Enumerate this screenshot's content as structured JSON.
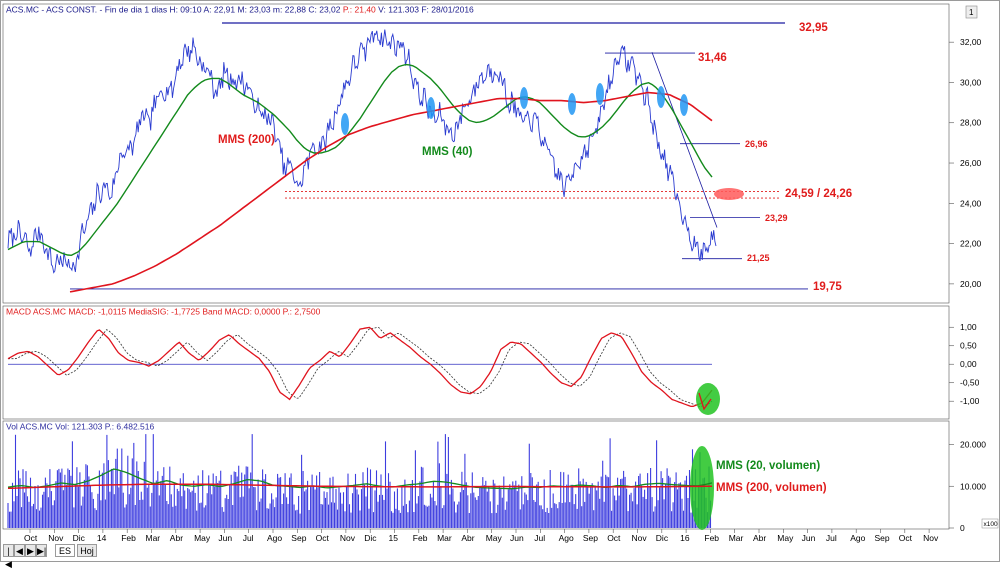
{
  "header": {
    "price_info": "ACS.MC - ACS CONST. - Fin de dia 1 dias H: 09:10 A: 22,91 M: 23,03 m: 22,88 C: 23,02 ",
    "price_change": "P.: 21,40",
    "price_info2": " V: 121.303 F: 28/01/2016"
  },
  "macd_header": {
    "text": "MACD ACS.MC MACD: -1,0115 MediaSIG: -1,7725 Band MACD: 0,0000 P.: 2,7500"
  },
  "vol_header": {
    "text": "Vol ACS.MC Vol: 121.303 P.: 6.482.516"
  },
  "scrollbar_badge": "1",
  "vol_unit_label": "x100",
  "nav_buttons": {
    "first": "|◀",
    "prev": "◀",
    "play": "▶",
    "next": "▶|",
    "tab_es": "ES",
    "tab_hoj": "Hoj"
  },
  "annotations": {
    "top_level": "32,95",
    "second_high": "31,46",
    "resistance_2696": "26,96",
    "support_zone": "24,59 / 24,26",
    "level_2329": "23,29",
    "level_2125": "21,25",
    "bottom_level": "19,75",
    "mms200": "MMS (200)",
    "mms40": "MMS (40)",
    "vol_mms20": "MMS (20, volumen)",
    "vol_mms200": "MMS (200, volumen)"
  },
  "colors": {
    "price_line": "#2a3bd0",
    "mms200": "#e0141e",
    "mms40": "#138a1c",
    "level_line": "#1a1aa0",
    "annotation_red": "#e01c1c",
    "annotation_green": "#138a1c",
    "macd_line": "#e0141e",
    "signal_line": "#333333",
    "volume_bar": "#3d3ddf",
    "marker_blue": "#2196f3",
    "marker_green": "#22c322",
    "marker_red": "#ff5a5a"
  },
  "chart_data": [
    {
      "type": "line",
      "name": "price",
      "x_tick_labels": [
        "Oct",
        "Nov",
        "Dic",
        "14",
        "Feb",
        "Mar",
        "Abr",
        "May",
        "Jun",
        "Jul",
        "Ago",
        "Sep",
        "Oct",
        "Nov",
        "Dic",
        "15",
        "Feb",
        "Mar",
        "Abr",
        "May",
        "Jun",
        "Jul",
        "Ago",
        "Sep",
        "Oct",
        "Nov",
        "Dic",
        "16",
        "Feb",
        "Mar",
        "Abr",
        "May",
        "Jun",
        "Jul",
        "Ago",
        "Sep",
        "Oct",
        "Nov"
      ],
      "y_tick_labels": [
        "32,00",
        "30,00",
        "28,00",
        "26,00",
        "24,00",
        "22,00",
        "20,00"
      ],
      "ylim": [
        19.2,
        33.2
      ],
      "series": [
        {
          "values": [
            22.0,
            22.6,
            22.3,
            21.6,
            22.7,
            21.9,
            20.9,
            21.2,
            21.0,
            20.9,
            22.5,
            23.4,
            24.4,
            24.8,
            24.5,
            26.4,
            26.5,
            27.1,
            28.4,
            28.0,
            29.2,
            29.7,
            29.6,
            31.0,
            31.6,
            31.7,
            30.8,
            30.5,
            29.4,
            30.5,
            30.1,
            30.1,
            29.9,
            29.0,
            28.4,
            28.3,
            27.4,
            25.8,
            25.8,
            24.7,
            25.9,
            26.9,
            26.7,
            27.6,
            28.5,
            29.6,
            30.5,
            31.3,
            31.6,
            32.5,
            32.3,
            32.0,
            31.9,
            31.8,
            30.8,
            29.5,
            29.1,
            28.2,
            28.4,
            27.6,
            27.5,
            28.6,
            29.2,
            30.0,
            30.4,
            30.6,
            30.5,
            29.1,
            28.8,
            28.0,
            28.2,
            28.0,
            26.8,
            26.2,
            25.2,
            24.8,
            25.9,
            26.3,
            27.0,
            27.6,
            29.1,
            30.3,
            31.5,
            31.1,
            30.8,
            29.8,
            28.9,
            27.2,
            26.3,
            25.2,
            24.0,
            23.0,
            22.0,
            21.4,
            22.0,
            22.4
          ]
        },
        {
          "name": "MMS (40)",
          "values": [
            21.7,
            21.9,
            22.1,
            22.1,
            22.1,
            21.9,
            21.7,
            21.5,
            21.4,
            21.6,
            22.0,
            22.5,
            23.0,
            23.5,
            24.0,
            24.6,
            25.2,
            25.8,
            26.4,
            27.0,
            27.6,
            28.2,
            28.8,
            29.4,
            29.8,
            30.1,
            30.2,
            30.2,
            30.0,
            29.7,
            29.4,
            29.2,
            29.0,
            28.7,
            28.4,
            28.0,
            27.6,
            27.1,
            26.7,
            26.5,
            26.5,
            26.6,
            26.8,
            27.2,
            27.7,
            28.2,
            28.8,
            29.4,
            30.0,
            30.5,
            30.8,
            30.9,
            30.8,
            30.5,
            30.2,
            29.8,
            29.3,
            28.8,
            28.4,
            28.1,
            28.0,
            28.1,
            28.3,
            28.6,
            28.9,
            29.2,
            29.3,
            29.2,
            29.0,
            28.6,
            28.2,
            27.8,
            27.5,
            27.3,
            27.3,
            27.5,
            27.8,
            28.2,
            28.7,
            29.2,
            29.6,
            29.9,
            30.0,
            29.7,
            29.2,
            28.6,
            27.9,
            27.2,
            26.5,
            25.8,
            25.3
          ]
        },
        {
          "name": "MMS (200)",
          "values": [
            19.6,
            19.8,
            20.0,
            20.4,
            20.9,
            21.5,
            22.2,
            22.9,
            23.7,
            24.5,
            25.3,
            26.1,
            26.8,
            27.4,
            27.8,
            28.1,
            28.4,
            28.6,
            28.8,
            29.0,
            29.2,
            29.2,
            29.1,
            29.1,
            29.0,
            29.1,
            29.3,
            29.5,
            29.4,
            28.9,
            28.1
          ]
        }
      ],
      "levels": [
        32.95,
        31.46,
        26.96,
        24.59,
        24.26,
        23.29,
        21.25,
        19.75
      ]
    },
    {
      "type": "line",
      "name": "MACD",
      "y_tick_labels": [
        "1,00",
        "0,50",
        "0,00",
        "-0,50",
        "-1,00"
      ],
      "ylim": [
        -1.4,
        1.25
      ],
      "zero_line": 0.0,
      "series": [
        {
          "values": [
            0.15,
            0.3,
            0.35,
            0.2,
            -0.05,
            -0.3,
            -0.15,
            0.2,
            0.6,
            0.95,
            0.7,
            0.3,
            0.1,
            0.05,
            -0.05,
            0.1,
            0.35,
            0.6,
            0.3,
            0.1,
            0.35,
            0.65,
            0.8,
            0.55,
            0.35,
            0.15,
            -0.2,
            -0.75,
            -0.95,
            -0.55,
            -0.1,
            0.1,
            0.35,
            0.2,
            0.55,
            0.95,
            1.0,
            0.7,
            0.85,
            0.65,
            0.45,
            0.2,
            0.0,
            -0.25,
            -0.55,
            -0.75,
            -0.8,
            -0.6,
            -0.2,
            0.4,
            0.6,
            0.55,
            0.3,
            0.05,
            -0.25,
            -0.5,
            -0.6,
            -0.35,
            0.2,
            0.7,
            0.85,
            0.75,
            0.3,
            -0.2,
            -0.5,
            -0.7,
            -0.95,
            -1.05,
            -1.15,
            -1.05,
            -0.7
          ]
        }
      ]
    },
    {
      "type": "bar",
      "name": "Volume",
      "y_tick_labels": [
        "20.000",
        "10.000",
        "0"
      ],
      "ylim": [
        0,
        23000
      ],
      "series": [
        {
          "name": "MMS (20, volumen)",
          "values": [
            9800,
            10200,
            9700,
            10100,
            10800,
            10400,
            11200,
            12600,
            14200,
            13200,
            11800,
            10600,
            11400,
            10300,
            10000,
            10400,
            9900,
            10600,
            11600,
            11300,
            10200,
            10000,
            9700,
            10100,
            9600,
            9900,
            10200,
            10600,
            10000,
            9800,
            10300,
            10600,
            11200,
            11000,
            10400,
            9800,
            9600,
            9500,
            9400,
            9800,
            9700,
            10100,
            9900,
            10300,
            10100,
            9700,
            10200,
            9900,
            10500,
            10700,
            10400,
            10200,
            10100,
            10800
          ]
        },
        {
          "name": "MMS (200, volumen)",
          "values": [
            9500,
            9700,
            9900,
            10100,
            10300,
            10400,
            10500,
            10500,
            10500,
            10400,
            10300,
            10200,
            10100,
            10000,
            9950,
            9900,
            9900,
            9850,
            9850,
            9900,
            9950,
            9950,
            9900,
            9900,
            9850,
            9850,
            9850,
            9900,
            9950,
            10000
          ]
        }
      ]
    }
  ]
}
